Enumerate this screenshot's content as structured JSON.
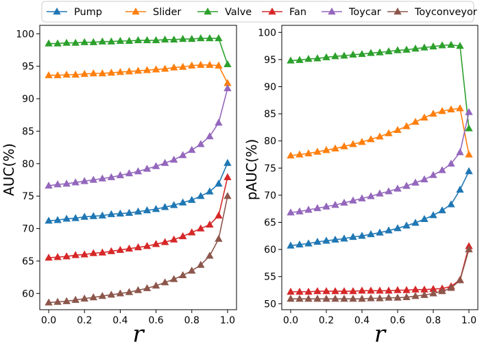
{
  "legend": [
    {
      "name": "Pump",
      "color": "#1f77b4"
    },
    {
      "name": "Slider",
      "color": "#ff7f0e"
    },
    {
      "name": "Valve",
      "color": "#2ca02c"
    },
    {
      "name": "Fan",
      "color": "#d62728"
    },
    {
      "name": "Toycar",
      "color": "#9467bd"
    },
    {
      "name": "Toyconveyor",
      "color": "#8c564b"
    }
  ],
  "chart_data": [
    {
      "type": "line",
      "marker": "triangle",
      "xlabel": "r",
      "ylabel": "AUC(%)",
      "xlim": [
        -0.05,
        1.05
      ],
      "ylim": [
        57.5,
        101.3
      ],
      "xticks": [
        0.0,
        0.2,
        0.4,
        0.6,
        0.8,
        1.0
      ],
      "xtick_labels": [
        "0.0",
        "0.2",
        "0.4",
        "0.6",
        "0.8",
        "1.0"
      ],
      "yticks": [
        60,
        65,
        70,
        75,
        80,
        85,
        90,
        95,
        100
      ],
      "ytick_labels": [
        "60",
        "65",
        "70",
        "75",
        "80",
        "85",
        "90",
        "95",
        "100"
      ],
      "x": [
        0.0,
        0.05,
        0.1,
        0.15,
        0.2,
        0.25,
        0.3,
        0.35,
        0.4,
        0.45,
        0.5,
        0.55,
        0.6,
        0.65,
        0.7,
        0.75,
        0.8,
        0.85,
        0.9,
        0.95,
        1.0
      ],
      "series": [
        {
          "name": "Pump",
          "color": "#1f77b4",
          "values": [
            71.2,
            71.3,
            71.5,
            71.6,
            71.8,
            71.9,
            72.0,
            72.2,
            72.3,
            72.4,
            72.6,
            72.8,
            73.0,
            73.3,
            73.6,
            74.0,
            74.4,
            75.0,
            75.7,
            76.9,
            80.1
          ]
        },
        {
          "name": "Slider",
          "color": "#ff7f0e",
          "values": [
            93.6,
            93.6,
            93.7,
            93.7,
            93.8,
            93.9,
            93.9,
            94.0,
            94.1,
            94.2,
            94.3,
            94.4,
            94.5,
            94.6,
            94.8,
            94.9,
            95.1,
            95.2,
            95.2,
            95.1,
            92.4
          ]
        },
        {
          "name": "Valve",
          "color": "#2ca02c",
          "values": [
            98.5,
            98.5,
            98.6,
            98.6,
            98.7,
            98.7,
            98.8,
            98.8,
            98.9,
            98.9,
            99.0,
            99.0,
            99.0,
            99.1,
            99.1,
            99.2,
            99.2,
            99.3,
            99.3,
            99.3,
            95.3
          ]
        },
        {
          "name": "Fan",
          "color": "#d62728",
          "values": [
            65.5,
            65.6,
            65.7,
            65.9,
            66.0,
            66.2,
            66.3,
            66.5,
            66.7,
            66.9,
            67.1,
            67.3,
            67.6,
            67.9,
            68.3,
            68.8,
            69.4,
            70.0,
            70.6,
            72.0,
            77.9
          ]
        },
        {
          "name": "Toycar",
          "color": "#9467bd",
          "values": [
            76.6,
            76.8,
            76.9,
            77.1,
            77.3,
            77.5,
            77.7,
            77.9,
            78.2,
            78.5,
            78.8,
            79.2,
            79.6,
            80.1,
            80.6,
            81.3,
            82.1,
            83.0,
            84.2,
            86.3,
            91.6
          ]
        },
        {
          "name": "Toyconveyor",
          "color": "#8c564b",
          "values": [
            58.6,
            58.7,
            58.8,
            59.0,
            59.2,
            59.4,
            59.6,
            59.8,
            60.0,
            60.2,
            60.5,
            60.8,
            61.2,
            61.7,
            62.2,
            62.8,
            63.5,
            64.4,
            65.8,
            68.4,
            75.0
          ]
        }
      ]
    },
    {
      "type": "line",
      "marker": "triangle",
      "xlabel": "r",
      "ylabel": "pAUC(%)",
      "xlim": [
        -0.05,
        1.05
      ],
      "ylim": [
        48.9,
        101.3
      ],
      "xticks": [
        0.0,
        0.2,
        0.4,
        0.6,
        0.8,
        1.0
      ],
      "xtick_labels": [
        "0.0",
        "0.2",
        "0.4",
        "0.6",
        "0.8",
        "1.0"
      ],
      "yticks": [
        50,
        55,
        60,
        65,
        70,
        75,
        80,
        85,
        90,
        95,
        100
      ],
      "ytick_labels": [
        "50",
        "55",
        "60",
        "65",
        "70",
        "75",
        "80",
        "85",
        "90",
        "95",
        "100"
      ],
      "x": [
        0.0,
        0.05,
        0.1,
        0.15,
        0.2,
        0.25,
        0.3,
        0.35,
        0.4,
        0.45,
        0.5,
        0.55,
        0.6,
        0.65,
        0.7,
        0.75,
        0.8,
        0.85,
        0.9,
        0.95,
        1.0
      ],
      "series": [
        {
          "name": "Pump",
          "color": "#1f77b4",
          "values": [
            60.7,
            60.9,
            61.1,
            61.4,
            61.6,
            61.8,
            62.0,
            62.3,
            62.5,
            62.8,
            63.1,
            63.5,
            63.9,
            64.4,
            64.9,
            65.6,
            66.3,
            67.2,
            68.3,
            71.0,
            74.4
          ]
        },
        {
          "name": "Slider",
          "color": "#ff7f0e",
          "values": [
            77.3,
            77.5,
            77.7,
            78.0,
            78.3,
            78.6,
            79.0,
            79.4,
            79.8,
            80.3,
            80.8,
            81.4,
            82.0,
            82.7,
            83.5,
            84.3,
            85.0,
            85.5,
            85.8,
            86.0,
            77.5
          ]
        },
        {
          "name": "Valve",
          "color": "#2ca02c",
          "values": [
            94.8,
            94.9,
            95.1,
            95.2,
            95.4,
            95.6,
            95.7,
            95.9,
            96.0,
            96.2,
            96.3,
            96.5,
            96.7,
            96.8,
            97.0,
            97.2,
            97.4,
            97.6,
            97.7,
            97.5,
            82.3
          ]
        },
        {
          "name": "Fan",
          "color": "#d62728",
          "values": [
            52.2,
            52.2,
            52.2,
            52.3,
            52.3,
            52.3,
            52.3,
            52.3,
            52.4,
            52.4,
            52.4,
            52.4,
            52.5,
            52.5,
            52.6,
            52.6,
            52.7,
            52.8,
            53.2,
            54.4,
            60.6
          ]
        },
        {
          "name": "Toycar",
          "color": "#9467bd",
          "values": [
            66.8,
            67.0,
            67.3,
            67.6,
            67.9,
            68.2,
            68.6,
            69.0,
            69.4,
            69.8,
            70.3,
            70.7,
            71.2,
            71.7,
            72.3,
            72.9,
            73.7,
            74.6,
            75.8,
            77.9,
            85.3
          ]
        },
        {
          "name": "Toyconveyor",
          "color": "#8c564b",
          "values": [
            50.9,
            50.9,
            50.9,
            50.9,
            50.9,
            50.9,
            50.9,
            50.9,
            50.9,
            51.0,
            51.0,
            51.1,
            51.1,
            51.2,
            51.4,
            51.6,
            51.9,
            52.3,
            52.9,
            54.3,
            60.0
          ]
        }
      ]
    }
  ]
}
